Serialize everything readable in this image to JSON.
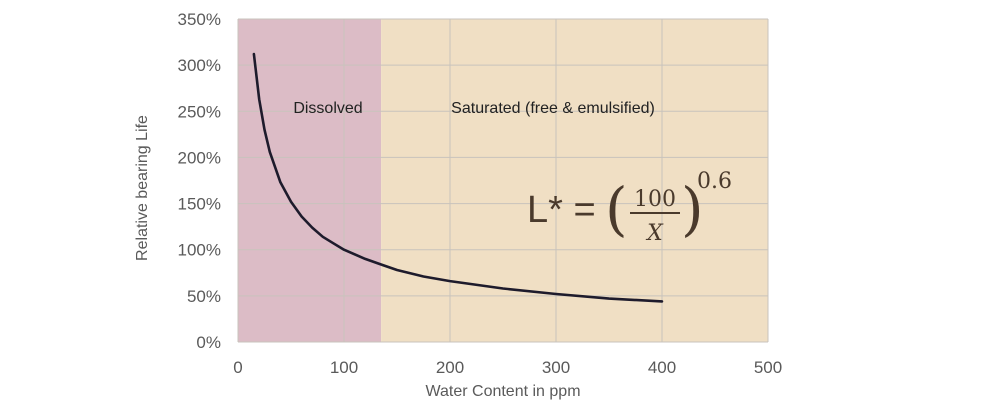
{
  "chart_data": {
    "type": "line",
    "title": "",
    "xlabel": "Water Content in ppm",
    "ylabel": "Relative bearing Life",
    "xlim": [
      0,
      500
    ],
    "ylim": [
      0,
      350
    ],
    "x_ticks": [
      0,
      100,
      200,
      300,
      400,
      500
    ],
    "y_ticks": [
      0,
      50,
      100,
      150,
      200,
      250,
      300,
      350
    ],
    "y_tick_labels": [
      "0%",
      "50%",
      "100%",
      "150%",
      "200%",
      "250%",
      "300%",
      "350%"
    ],
    "grid": true,
    "regions": [
      {
        "name": "Dissolved",
        "x_range": [
          0,
          135
        ],
        "color": "#dcbcc6"
      },
      {
        "name": "Saturated (free & emulsified)",
        "x_range": [
          135,
          500
        ],
        "color": "#f0dfc4"
      }
    ],
    "series": [
      {
        "name": "L* = (100/X)^0.6",
        "color": "#1e1b2c",
        "x": [
          15,
          20,
          25,
          30,
          40,
          50,
          60,
          70,
          80,
          90,
          100,
          120,
          135,
          150,
          175,
          200,
          250,
          300,
          350,
          400
        ],
        "values": [
          312,
          263,
          230,
          206,
          173,
          152,
          136,
          124,
          114,
          107,
          100,
          90,
          84,
          78,
          71,
          66,
          58,
          52,
          47,
          44
        ]
      }
    ],
    "annotation": {
      "lhs": "L* =",
      "numerator": "100",
      "denominator": "X",
      "exponent": "0.6"
    }
  }
}
